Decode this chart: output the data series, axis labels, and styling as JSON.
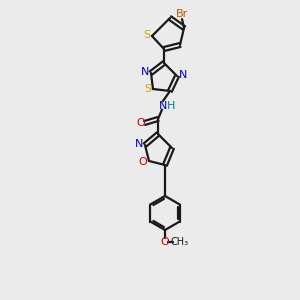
{
  "bg_color": "#ebebeb",
  "bond_color": "#1a1a1a",
  "colors": {
    "Br": "#b35900",
    "S": "#ccaa00",
    "N": "#0000cc",
    "O": "#cc0000",
    "H": "#008080",
    "C": "#1a1a1a"
  }
}
